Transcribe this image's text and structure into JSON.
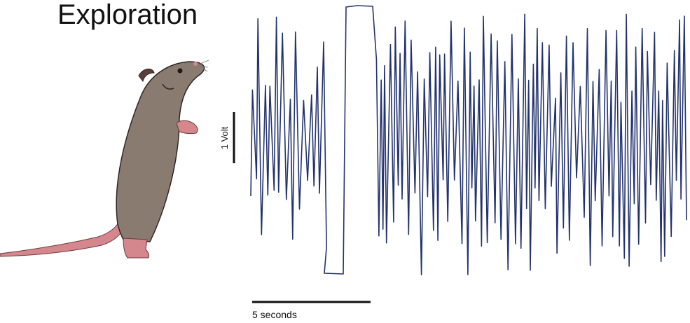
{
  "title": "Exploration",
  "scale_bars": {
    "voltage": "1 Volt",
    "time": "5 seconds"
  }
}
